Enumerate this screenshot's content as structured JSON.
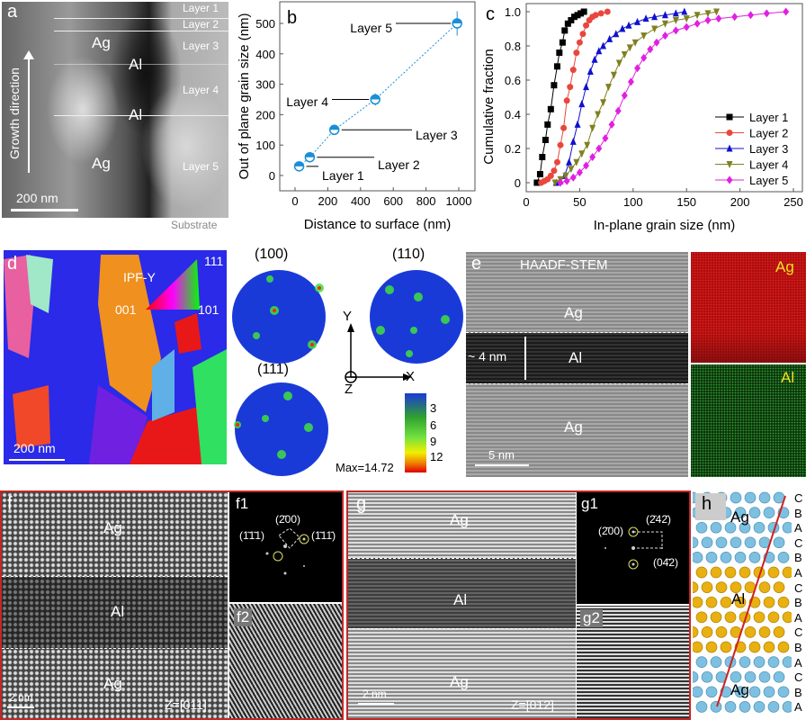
{
  "panel_a": {
    "label": "a",
    "layers": [
      "Layer 1",
      "Layer 2",
      "Layer 3",
      "Layer 4",
      "Layer 5"
    ],
    "ag1": "Ag",
    "al1": "Al",
    "al2": "Al",
    "ag2": "Ag",
    "growth": "Growth direction",
    "scale": "200 nm",
    "substrate": "Substrate"
  },
  "panel_b": {
    "label": "b"
  },
  "panel_c": {
    "label": "c"
  },
  "chart_data": [
    {
      "type": "scatter",
      "panel": "b",
      "xlabel": "Distance to surface (nm)",
      "ylabel": "Out of plane grain size (nm)",
      "xlim": [
        -100,
        1100
      ],
      "ylim": [
        -50,
        550
      ],
      "xticks": [
        "0",
        "200",
        "400",
        "600",
        "800",
        "1000"
      ],
      "yticks": [
        "0",
        "100",
        "200",
        "300",
        "400",
        "500"
      ],
      "points": [
        {
          "name": "Layer 1",
          "x": 25,
          "y": 30,
          "err": 5
        },
        {
          "name": "Layer 2",
          "x": 90,
          "y": 60,
          "err": 8
        },
        {
          "name": "Layer 3",
          "x": 240,
          "y": 150,
          "err": 6
        },
        {
          "name": "Layer 4",
          "x": 490,
          "y": 250,
          "err": 20
        },
        {
          "name": "Layer 5",
          "x": 990,
          "y": 500,
          "err": 40
        }
      ],
      "color": "#1a8fd6"
    },
    {
      "type": "line",
      "panel": "c",
      "xlabel": "In-plane grain size (nm)",
      "ylabel": "Cumulative fraction",
      "xlim": [
        0,
        250
      ],
      "ylim": [
        -0.05,
        1.05
      ],
      "legend": "bottom-right",
      "xticks": [
        "0",
        "50",
        "100",
        "150",
        "200",
        "250"
      ],
      "yticks": [
        "0",
        "0.2",
        "0.4",
        "0.6",
        "0.8",
        "1.0"
      ],
      "series": [
        {
          "name": "Layer 1",
          "color": "#000000",
          "marker": "square",
          "points": [
            [
              10,
              0
            ],
            [
              13,
              0.05
            ],
            [
              15,
              0.15
            ],
            [
              18,
              0.25
            ],
            [
              20,
              0.34
            ],
            [
              23,
              0.43
            ],
            [
              26,
              0.57
            ],
            [
              29,
              0.68
            ],
            [
              31,
              0.76
            ],
            [
              34,
              0.82
            ],
            [
              36,
              0.89
            ],
            [
              39,
              0.93
            ],
            [
              42,
              0.95
            ],
            [
              45,
              0.97
            ],
            [
              48,
              0.98
            ],
            [
              51,
              0.99
            ],
            [
              54,
              1.0
            ]
          ]
        },
        {
          "name": "Layer 2",
          "color": "#e8473e",
          "marker": "circle",
          "points": [
            [
              14,
              0
            ],
            [
              17,
              0.01
            ],
            [
              20,
              0.02
            ],
            [
              23,
              0.04
            ],
            [
              26,
              0.07
            ],
            [
              29,
              0.12
            ],
            [
              32,
              0.22
            ],
            [
              35,
              0.32
            ],
            [
              38,
              0.48
            ],
            [
              41,
              0.56
            ],
            [
              44,
              0.66
            ],
            [
              47,
              0.76
            ],
            [
              50,
              0.82
            ],
            [
              53,
              0.87
            ],
            [
              56,
              0.92
            ],
            [
              59,
              0.95
            ],
            [
              62,
              0.97
            ],
            [
              65,
              0.98
            ],
            [
              70,
              0.99
            ],
            [
              76,
              1.0
            ]
          ]
        },
        {
          "name": "Layer 3",
          "color": "#1010d0",
          "marker": "triangle-up",
          "points": [
            [
              28,
              0
            ],
            [
              32,
              0.01
            ],
            [
              36,
              0.04
            ],
            [
              40,
              0.12
            ],
            [
              44,
              0.24
            ],
            [
              48,
              0.34
            ],
            [
              52,
              0.46
            ],
            [
              56,
              0.56
            ],
            [
              60,
              0.65
            ],
            [
              64,
              0.72
            ],
            [
              68,
              0.77
            ],
            [
              72,
              0.8
            ],
            [
              78,
              0.84
            ],
            [
              84,
              0.87
            ],
            [
              90,
              0.9
            ],
            [
              96,
              0.92
            ],
            [
              104,
              0.94
            ],
            [
              112,
              0.96
            ],
            [
              120,
              0.97
            ],
            [
              130,
              0.98
            ],
            [
              140,
              0.99
            ],
            [
              148,
              1.0
            ]
          ]
        },
        {
          "name": "Layer 4",
          "color": "#808020",
          "marker": "triangle-down",
          "points": [
            [
              27,
              0
            ],
            [
              32,
              0.02
            ],
            [
              37,
              0.04
            ],
            [
              42,
              0.08
            ],
            [
              47,
              0.12
            ],
            [
              52,
              0.17
            ],
            [
              57,
              0.22
            ],
            [
              62,
              0.32
            ],
            [
              67,
              0.4
            ],
            [
              72,
              0.47
            ],
            [
              77,
              0.56
            ],
            [
              82,
              0.63
            ],
            [
              87,
              0.7
            ],
            [
              92,
              0.75
            ],
            [
              97,
              0.79
            ],
            [
              102,
              0.82
            ],
            [
              110,
              0.86
            ],
            [
              120,
              0.9
            ],
            [
              130,
              0.93
            ],
            [
              140,
              0.95
            ],
            [
              150,
              0.96
            ],
            [
              160,
              0.98
            ],
            [
              170,
              0.99
            ],
            [
              178,
              1.0
            ]
          ]
        },
        {
          "name": "Layer 5",
          "color": "#e020e0",
          "marker": "diamond",
          "points": [
            [
              32,
              0
            ],
            [
              38,
              0.01
            ],
            [
              44,
              0.03
            ],
            [
              50,
              0.06
            ],
            [
              56,
              0.1
            ],
            [
              62,
              0.15
            ],
            [
              68,
              0.2
            ],
            [
              74,
              0.26
            ],
            [
              80,
              0.34
            ],
            [
              86,
              0.42
            ],
            [
              92,
              0.51
            ],
            [
              98,
              0.59
            ],
            [
              104,
              0.67
            ],
            [
              110,
              0.73
            ],
            [
              116,
              0.78
            ],
            [
              122,
              0.82
            ],
            [
              130,
              0.86
            ],
            [
              140,
              0.89
            ],
            [
              150,
              0.91
            ],
            [
              160,
              0.93
            ],
            [
              170,
              0.95
            ],
            [
              180,
              0.96
            ],
            [
              195,
              0.97
            ],
            [
              210,
              0.98
            ],
            [
              225,
              0.99
            ],
            [
              243,
              1.0
            ]
          ]
        }
      ]
    }
  ],
  "panel_d": {
    "label": "d",
    "ipf": "IPF-Y",
    "c001": "001",
    "c101": "101",
    "c111": "111",
    "scale": "200 nm",
    "pf100": "(100)",
    "pf110": "(110)",
    "pf111": "(111)",
    "axis_x": "X",
    "axis_y": "Y",
    "axis_z": "Z",
    "cbar": [
      "3",
      "6",
      "9",
      "12"
    ],
    "max": "Max=14.72"
  },
  "panel_e": {
    "label": "e",
    "title": "HAADF-STEM",
    "ag_top": "Ag",
    "al": "Al",
    "ag_bot": "Ag",
    "thickness": "~ 4 nm",
    "scale": "5 nm",
    "map_ag": "Ag",
    "map_al": "Al"
  },
  "panel_f": {
    "label": "f",
    "ag_top": "Ag",
    "al": "Al",
    "ag_bot": "Ag",
    "scale": "2 nm",
    "zone": "Z=[011]",
    "f1": "f1",
    "f2": "f2",
    "spot_200": "(2̄00)",
    "spot_left": "(1̄1̄1)",
    "spot_right": "(1̄11̄)"
  },
  "panel_g": {
    "label": "g",
    "ag_top": "Ag",
    "al": "Al",
    "ag_bot": "Ag",
    "scale": "2 nm",
    "zone": "Z=[012]",
    "g1": "g1",
    "g2": "g2",
    "spot_200": "(2̄00)",
    "spot_242": "(2̄42̄)",
    "spot_042": "(04̄2)"
  },
  "panel_h": {
    "label": "h",
    "ag_top": "Ag",
    "al": "Al",
    "ag_bot": "Ag",
    "stacking": [
      "C",
      "B",
      "A",
      "C",
      "B",
      "A",
      "C",
      "B",
      "A",
      "C",
      "B",
      "A",
      "C",
      "B",
      "A"
    ]
  },
  "colors": {
    "ag_atom": "#7ec0e0",
    "al_atom": "#e8b010",
    "line": "#d02020",
    "frame": "#c02828"
  }
}
